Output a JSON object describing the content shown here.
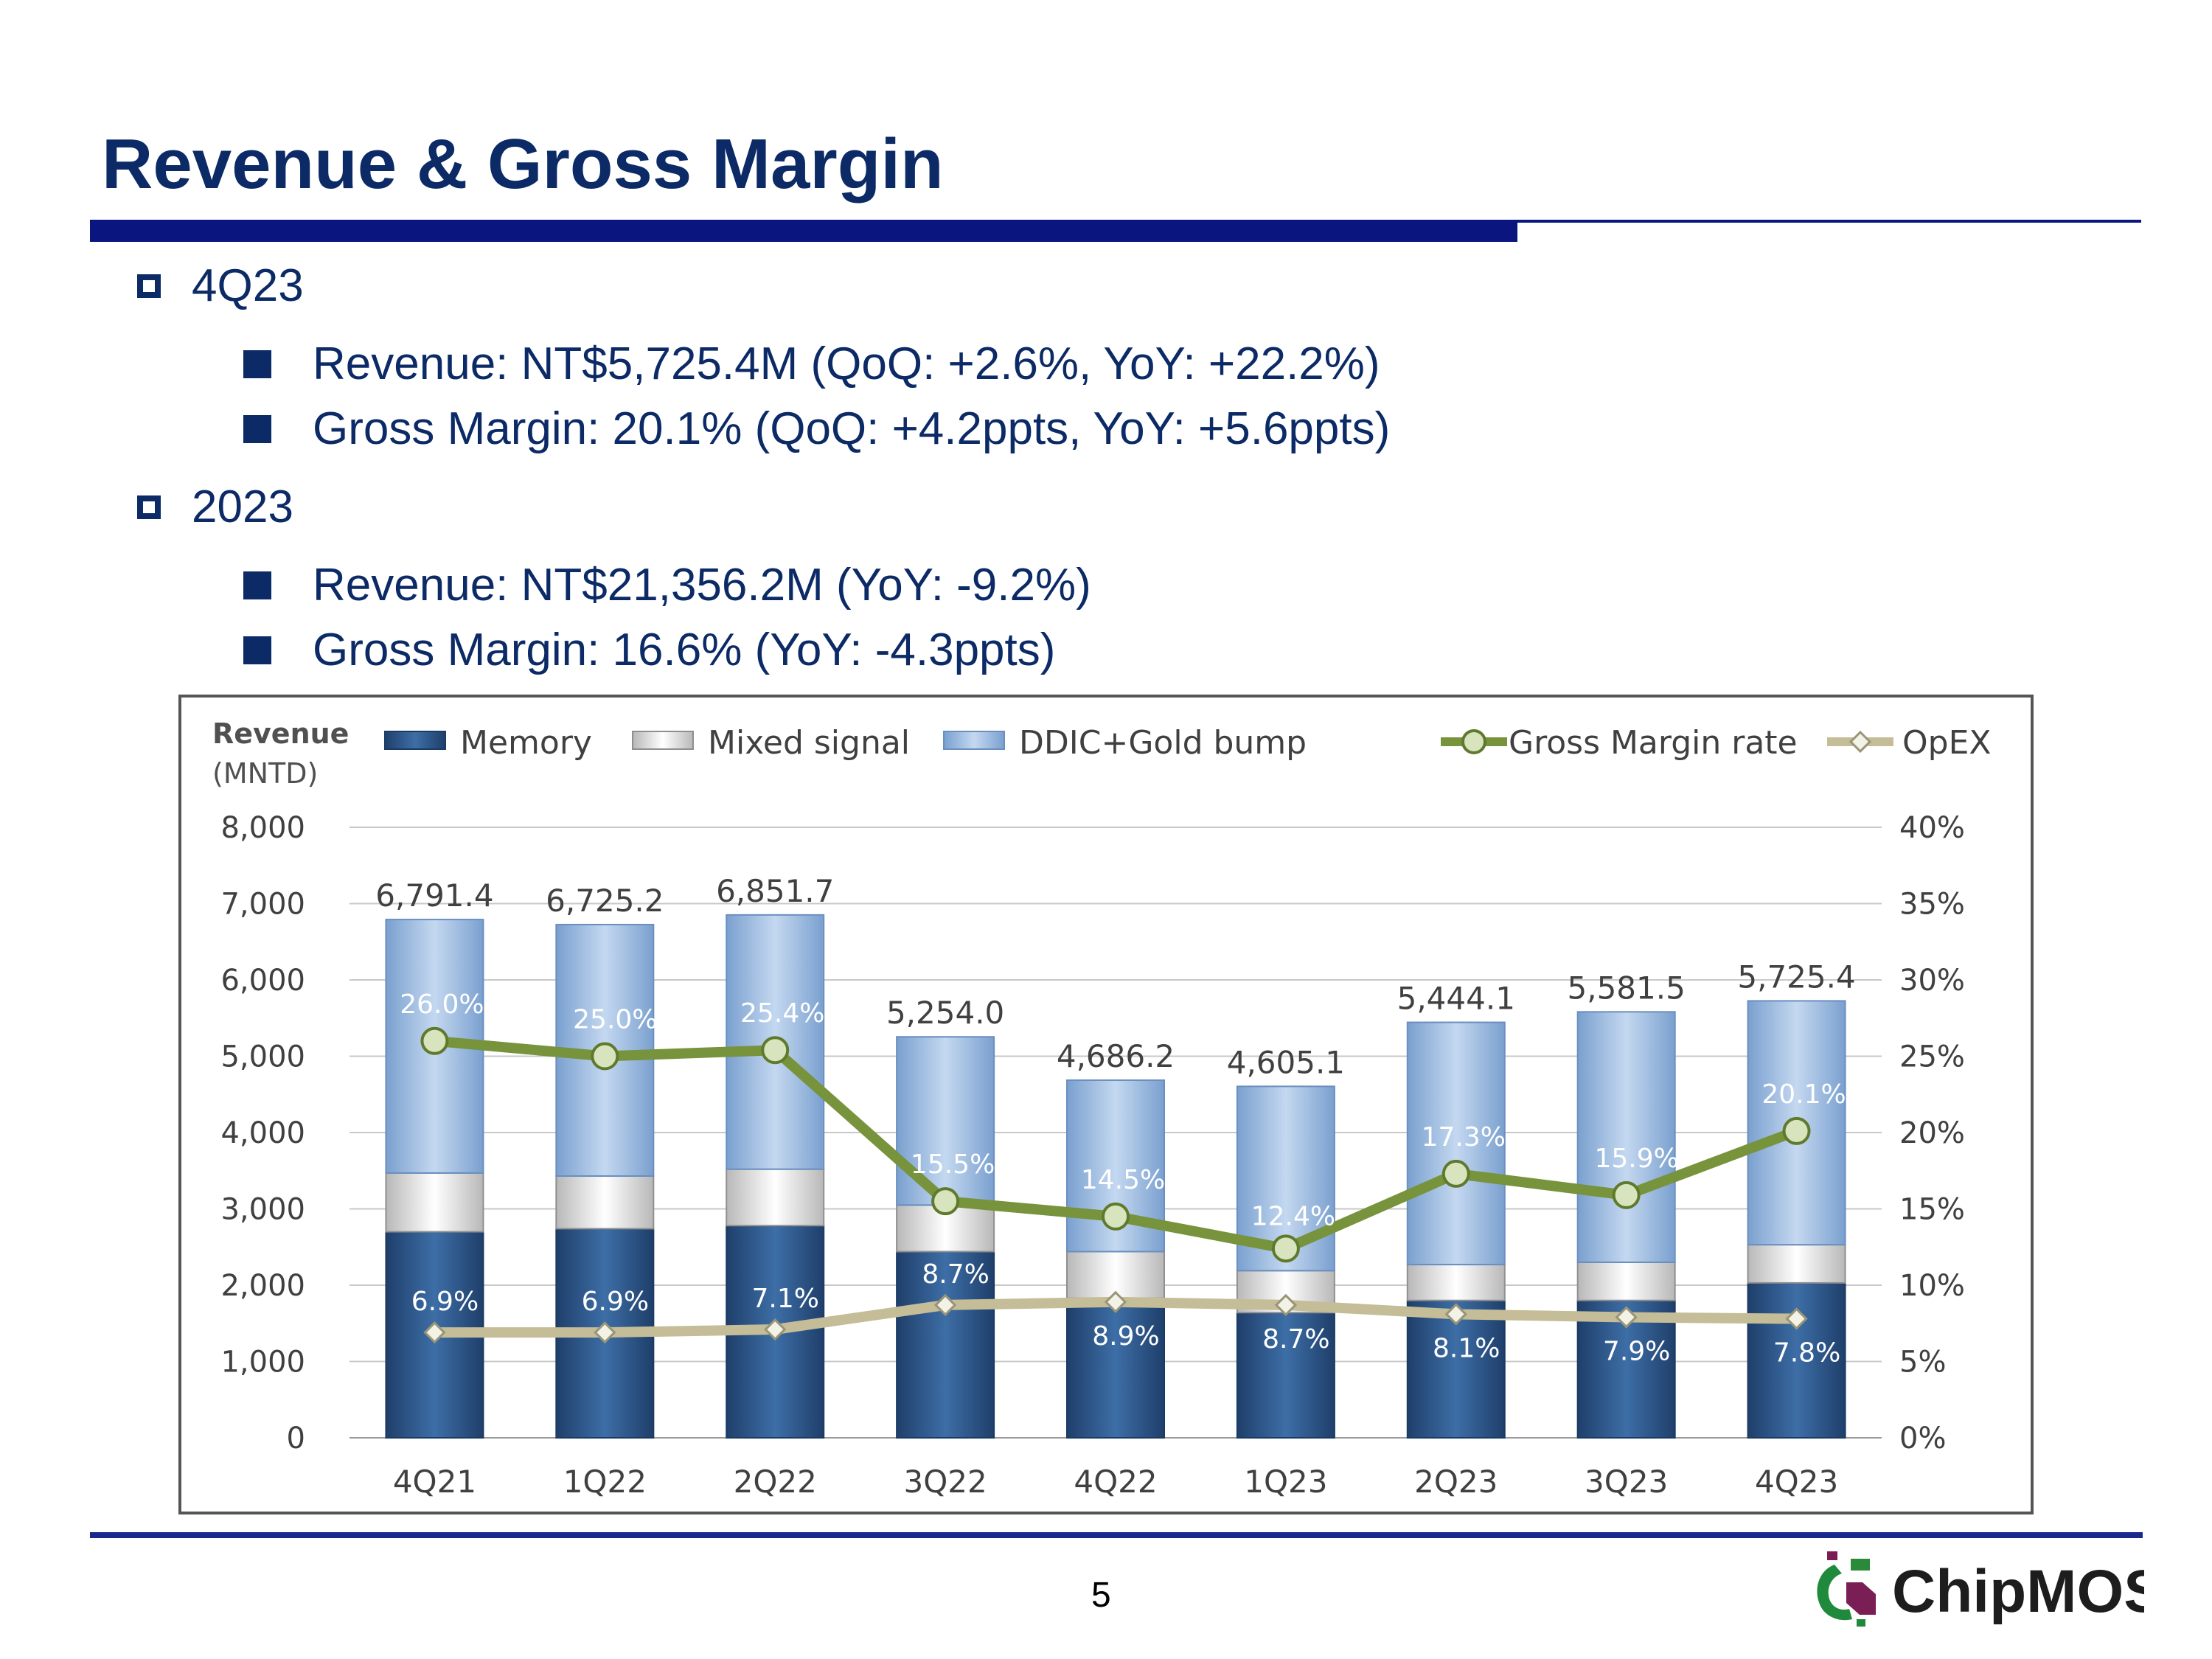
{
  "slide": {
    "title": "Revenue & Gross Margin",
    "page_number": "5",
    "logo_text": "ChipMOS",
    "sections": [
      {
        "heading": "4Q23",
        "bullets": [
          "Revenue: NT$5,725.4M (QoQ: +2.6%, YoY: +22.2%)",
          "Gross Margin: 20.1% (QoQ: +4.2ppts, YoY: +5.6ppts)"
        ]
      },
      {
        "heading": "2023",
        "bullets": [
          "Revenue: NT$21,356.2M (YoY: -9.2%)",
          "Gross Margin: 16.6% (YoY: -4.3ppts)"
        ]
      }
    ]
  },
  "colors": {
    "title": "#0b2a66",
    "memory": "#2e5a94",
    "mixed_signal": "#e6e6e6",
    "ddic": "#a9c5e8",
    "gross_margin": "#77933c",
    "gm_marker": "#d7e4bd",
    "opex": "#c4bd97",
    "opex_marker": "#f2f2e6"
  },
  "chart_data": {
    "type": "bar",
    "stacked": true,
    "ylabel": "Revenue",
    "ylabel_unit": "(MNTD)",
    "ylim": [
      0,
      8000
    ],
    "yticks": [
      "0",
      "1,000",
      "2,000",
      "3,000",
      "4,000",
      "5,000",
      "6,000",
      "7,000",
      "8,000"
    ],
    "y2lim": [
      0,
      40
    ],
    "y2ticks": [
      "0%",
      "5%",
      "10%",
      "15%",
      "20%",
      "25%",
      "30%",
      "35%",
      "40%"
    ],
    "categories": [
      "4Q21",
      "1Q22",
      "2Q22",
      "3Q22",
      "4Q22",
      "1Q23",
      "2Q23",
      "3Q23",
      "4Q23"
    ],
    "series": [
      {
        "name": "Memory",
        "type": "bar",
        "values": [
          2700,
          2740,
          2780,
          2440,
          1830,
          1640,
          1800,
          1800,
          2030
        ]
      },
      {
        "name": "Mixed signal",
        "type": "bar",
        "values": [
          770,
          690,
          740,
          610,
          610,
          550,
          470,
          500,
          500
        ]
      },
      {
        "name": "DDIC+Gold bump",
        "type": "bar",
        "values": [
          3321.4,
          3295.2,
          3331.7,
          2204.0,
          2246.2,
          2415.1,
          3174.1,
          3281.5,
          3195.4
        ]
      },
      {
        "name": "Gross Margin rate",
        "type": "line",
        "axis": "right",
        "values": [
          26.0,
          25.0,
          25.4,
          15.5,
          14.5,
          12.4,
          17.3,
          15.9,
          20.1
        ]
      },
      {
        "name": "OpEX",
        "type": "line",
        "axis": "right",
        "values": [
          6.9,
          6.9,
          7.1,
          8.7,
          8.9,
          8.7,
          8.1,
          7.9,
          7.8
        ]
      }
    ],
    "total_labels": [
      "6,791.4",
      "6,725.2",
      "6,851.7",
      "5,254.0",
      "4,686.2",
      "4,605.1",
      "5,444.1",
      "5,581.5",
      "5,725.4"
    ],
    "gm_labels": [
      "26.0%",
      "25.0%",
      "25.4%",
      "15.5%",
      "14.5%",
      "12.4%",
      "17.3%",
      "15.9%",
      "20.1%"
    ],
    "opex_labels": [
      "6.9%",
      "6.9%",
      "7.1%",
      "8.7%",
      "8.9%",
      "8.7%",
      "8.1%",
      "7.9%",
      "7.8%"
    ],
    "legend_position": "top",
    "grid": true
  }
}
